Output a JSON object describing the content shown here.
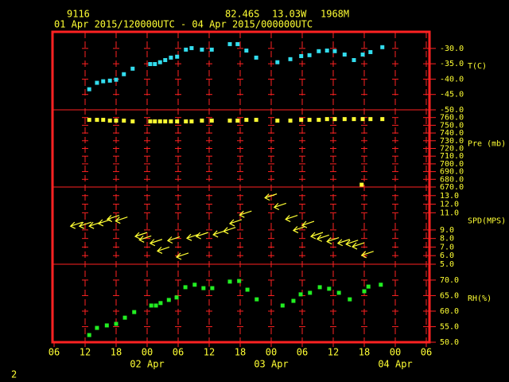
{
  "header": {
    "station": "9116",
    "lat": "82.46S",
    "lon": "13.03W",
    "elev": "1968M",
    "period": "01 Apr 2015/120000UTC - 04 Apr 2015/000000UTC",
    "page": "2"
  },
  "x_axis": {
    "xlim": [
      6,
      78
    ],
    "xticks": [
      {
        "value": 6,
        "label": "06"
      },
      {
        "value": 12,
        "label": "12"
      },
      {
        "value": 18,
        "label": "18"
      },
      {
        "value": 24,
        "label": "00"
      },
      {
        "value": 30,
        "label": "06"
      },
      {
        "value": 36,
        "label": "12"
      },
      {
        "value": 42,
        "label": "18"
      },
      {
        "value": 48,
        "label": "00"
      },
      {
        "value": 54,
        "label": "06"
      },
      {
        "value": 60,
        "label": "12"
      },
      {
        "value": 66,
        "label": "18"
      },
      {
        "value": 72,
        "label": "00"
      },
      {
        "value": 78,
        "label": "06"
      }
    ],
    "day_labels": [
      {
        "value": 24,
        "label": "02 Apr"
      },
      {
        "value": 48,
        "label": "03 Apr"
      },
      {
        "value": 72,
        "label": "04 Apr"
      }
    ]
  },
  "chart_data": [
    {
      "type": "scatter",
      "ylabel": "T(C)",
      "color": "#33ddee",
      "ylim": [
        -50,
        -24.6
      ],
      "yticks": [
        {
          "value": -30,
          "label": "-30.0"
        },
        {
          "value": -35,
          "label": "-35.0"
        },
        {
          "value": -40,
          "label": "-40.0"
        },
        {
          "value": -45,
          "label": "-45.0"
        },
        {
          "value": -50,
          "label": "-50.0"
        }
      ],
      "x": [
        12.8,
        14.3,
        15.5,
        16.8,
        18.0,
        19.5,
        21.2,
        24.6,
        25.5,
        26.5,
        27.5,
        28.6,
        29.8,
        31.5,
        32.6,
        34.6,
        36.5,
        40.0,
        41.5,
        43.2,
        45.1,
        49.2,
        51.7,
        53.8,
        55.4,
        57.2,
        58.8,
        60.3,
        62.2,
        64.0,
        65.7,
        67.2,
        69.5
      ],
      "values": [
        -43.3,
        -41.2,
        -40.7,
        -40.5,
        -40.2,
        -38.4,
        -36.6,
        -35.1,
        -35.1,
        -34.5,
        -33.8,
        -33.0,
        -32.7,
        -30.4,
        -29.9,
        -30.4,
        -30.4,
        -28.6,
        -28.6,
        -30.7,
        -33.0,
        -34.5,
        -33.5,
        -32.5,
        -32.2,
        -30.9,
        -30.7,
        -30.9,
        -32.0,
        -33.8,
        -32.0,
        -31.2,
        -29.6
      ]
    },
    {
      "type": "scatter",
      "ylabel": "Pre (mb)",
      "color": "#ffff33",
      "ylim": [
        670,
        770
      ],
      "yticks": [
        {
          "value": 760,
          "label": "760.0"
        },
        {
          "value": 750,
          "label": "750.0"
        },
        {
          "value": 740,
          "label": "740.0"
        },
        {
          "value": 730,
          "label": "730.0"
        },
        {
          "value": 720,
          "label": "720.0"
        },
        {
          "value": 710,
          "label": "710.0"
        },
        {
          "value": 700,
          "label": "700.0"
        },
        {
          "value": 690,
          "label": "690.0"
        },
        {
          "value": 680,
          "label": "680.0"
        },
        {
          "value": 670,
          "label": "670.0"
        }
      ],
      "x": [
        12.8,
        14.3,
        15.5,
        16.8,
        18.0,
        19.5,
        21.2,
        24.6,
        25.5,
        26.5,
        27.5,
        28.6,
        29.8,
        31.5,
        32.6,
        34.6,
        36.5,
        40.0,
        41.5,
        43.2,
        45.1,
        49.2,
        51.7,
        53.8,
        55.4,
        57.2,
        58.8,
        60.3,
        62.2,
        64.0,
        65.5,
        65.7,
        67.2,
        69.5
      ],
      "values": [
        757,
        757,
        757,
        756,
        756,
        756,
        755,
        755,
        755,
        755,
        755,
        755,
        755,
        755,
        755,
        756,
        756,
        756,
        756,
        757,
        757,
        756,
        756,
        757,
        757,
        757,
        758,
        758,
        758,
        758,
        673,
        758,
        758,
        758
      ]
    },
    {
      "type": "arrow",
      "ylabel": "SPD(MPS)",
      "color": "#ffff33",
      "ylim": [
        5,
        14
      ],
      "yticks": [
        {
          "value": 13,
          "label": "13.0"
        },
        {
          "value": 12,
          "label": "12.0"
        },
        {
          "value": 11,
          "label": "11.0"
        },
        {
          "value": 9,
          "label": "9.0"
        },
        {
          "value": 8,
          "label": "8.0"
        },
        {
          "value": 7,
          "label": "7.0"
        },
        {
          "value": 6,
          "label": "6.0"
        },
        {
          "value": 5,
          "label": "5.0"
        }
      ],
      "x": [
        11.5,
        13.2,
        15.1,
        16.9,
        18.6,
        20.2,
        24.0,
        24.8,
        26.9,
        28.3,
        30.3,
        32.0,
        34.0,
        35.8,
        39.1,
        41.1,
        42.3,
        44.2,
        49.1,
        50.9,
        53.1,
        54.6,
        56.3,
        58.0,
        59.2,
        61.1,
        63.2,
        64.8,
        66.0,
        67.8
      ],
      "values": [
        9.9,
        9.9,
        9.9,
        10.2,
        10.7,
        10.5,
        8.7,
        8.3,
        7.9,
        7.0,
        8.2,
        6.3,
        8.5,
        8.7,
        8.9,
        9.3,
        10.2,
        11.2,
        13.2,
        12.1,
        10.7,
        9.4,
        10.0,
        8.7,
        8.4,
        8.1,
        7.9,
        7.8,
        7.5,
        6.5
      ]
    },
    {
      "type": "scatter",
      "ylabel": "RH(%)",
      "color": "#22ee22",
      "ylim": [
        50,
        75.1
      ],
      "yticks": [
        {
          "value": 70,
          "label": "70.0"
        },
        {
          "value": 65,
          "label": "65.0"
        },
        {
          "value": 60,
          "label": "60.0"
        },
        {
          "value": 55,
          "label": "55.0"
        },
        {
          "value": 50,
          "label": "50.0"
        }
      ],
      "x": [
        12.8,
        14.3,
        16.2,
        18.0,
        19.7,
        21.5,
        24.8,
        25.7,
        26.6,
        28.2,
        29.7,
        31.4,
        33.2,
        34.9,
        36.6,
        40.0,
        41.8,
        43.4,
        45.2,
        50.2,
        52.3,
        53.7,
        55.5,
        57.4,
        59.2,
        61.1,
        63.2,
        66.0,
        66.8,
        69.2
      ],
      "values": [
        52.3,
        54.6,
        55.4,
        55.9,
        57.9,
        59.7,
        61.8,
        61.8,
        62.6,
        63.6,
        64.4,
        67.7,
        68.5,
        67.4,
        67.4,
        69.5,
        69.7,
        66.9,
        63.8,
        61.8,
        63.3,
        65.4,
        65.9,
        67.7,
        67.2,
        65.9,
        63.8,
        66.4,
        67.9,
        68.5
      ]
    }
  ]
}
